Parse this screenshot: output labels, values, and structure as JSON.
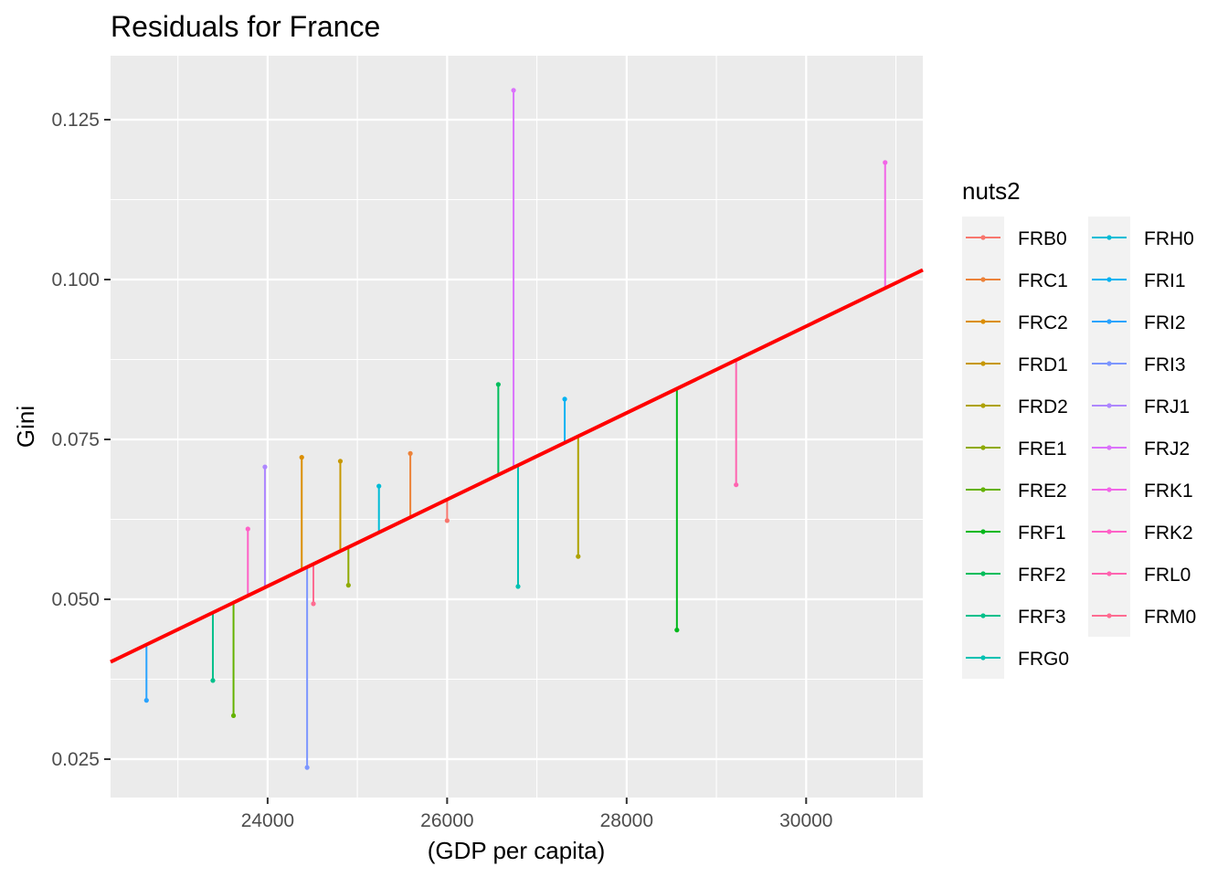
{
  "chart_data": {
    "type": "scatter",
    "title": "Residuals for France",
    "xlabel": "(GDP per capita)",
    "ylabel": "Gini",
    "xlim": [
      22250,
      31300
    ],
    "ylim": [
      0.019,
      0.135
    ],
    "x_ticks": [
      24000,
      26000,
      28000,
      30000
    ],
    "x_tick_labels": [
      "24000",
      "26000",
      "28000",
      "30000"
    ],
    "y_ticks": [
      0.025,
      0.05,
      0.075,
      0.1,
      0.125
    ],
    "y_tick_labels": [
      "0.025",
      "0.050",
      "0.075",
      "0.100",
      "0.125"
    ],
    "grid": true,
    "legend": {
      "title": "nuts2",
      "placement": "right",
      "entries": [
        {
          "name": "FRB0",
          "color": "#F8766D"
        },
        {
          "name": "FRC1",
          "color": "#EC8239"
        },
        {
          "name": "FRC2",
          "color": "#DB8E00"
        },
        {
          "name": "FRD1",
          "color": "#C79800"
        },
        {
          "name": "FRD2",
          "color": "#AEA200"
        },
        {
          "name": "FRE1",
          "color": "#8FAA00"
        },
        {
          "name": "FRE2",
          "color": "#64B200"
        },
        {
          "name": "FRF1",
          "color": "#00B81B"
        },
        {
          "name": "FRF2",
          "color": "#00BD5C"
        },
        {
          "name": "FRF3",
          "color": "#00C08B"
        },
        {
          "name": "FRG0",
          "color": "#00C1B2"
        },
        {
          "name": "FRH0",
          "color": "#00BCD6"
        },
        {
          "name": "FRI1",
          "color": "#00B3F2"
        },
        {
          "name": "FRI2",
          "color": "#29A3FF"
        },
        {
          "name": "FRI3",
          "color": "#7C96FF"
        },
        {
          "name": "FRJ1",
          "color": "#AE87FF"
        },
        {
          "name": "FRJ2",
          "color": "#DB72FB"
        },
        {
          "name": "FRK1",
          "color": "#F265E7"
        },
        {
          "name": "FRK2",
          "color": "#FF61C7"
        },
        {
          "name": "FRL0",
          "color": "#FF64B0"
        },
        {
          "name": "FRM0",
          "color": "#FF6C91"
        }
      ]
    },
    "regression_line": {
      "x": [
        22250,
        31300
      ],
      "y": [
        0.0402,
        0.1015
      ],
      "color": "#FF0000"
    },
    "series": [
      {
        "name": "FRB0",
        "x": 26000,
        "y": 0.0623
      },
      {
        "name": "FRC1",
        "x": 25590,
        "y": 0.0728
      },
      {
        "name": "FRC2",
        "x": 24380,
        "y": 0.0722
      },
      {
        "name": "FRD1",
        "x": 24810,
        "y": 0.0716
      },
      {
        "name": "FRD2",
        "x": 27460,
        "y": 0.0567
      },
      {
        "name": "FRE1",
        "x": 24900,
        "y": 0.0522
      },
      {
        "name": "FRE2",
        "x": 23620,
        "y": 0.0318
      },
      {
        "name": "FRF1",
        "x": 28560,
        "y": 0.0452
      },
      {
        "name": "FRF2",
        "x": 26570,
        "y": 0.0836
      },
      {
        "name": "FRF3",
        "x": 23390,
        "y": 0.0373
      },
      {
        "name": "FRG0",
        "x": 26790,
        "y": 0.052
      },
      {
        "name": "FRH0",
        "x": 25240,
        "y": 0.0677
      },
      {
        "name": "FRI1",
        "x": 27310,
        "y": 0.0813
      },
      {
        "name": "FRI2",
        "x": 22650,
        "y": 0.0342
      },
      {
        "name": "FRI3",
        "x": 24440,
        "y": 0.0237
      },
      {
        "name": "FRJ1",
        "x": 23970,
        "y": 0.0707
      },
      {
        "name": "FRJ2",
        "x": 26740,
        "y": 0.1296
      },
      {
        "name": "FRK1",
        "x": 30880,
        "y": 0.1183
      },
      {
        "name": "FRK2",
        "x": 23780,
        "y": 0.061
      },
      {
        "name": "FRL0",
        "x": 29220,
        "y": 0.0679
      },
      {
        "name": "FRM0",
        "x": 24510,
        "y": 0.0493
      }
    ]
  }
}
